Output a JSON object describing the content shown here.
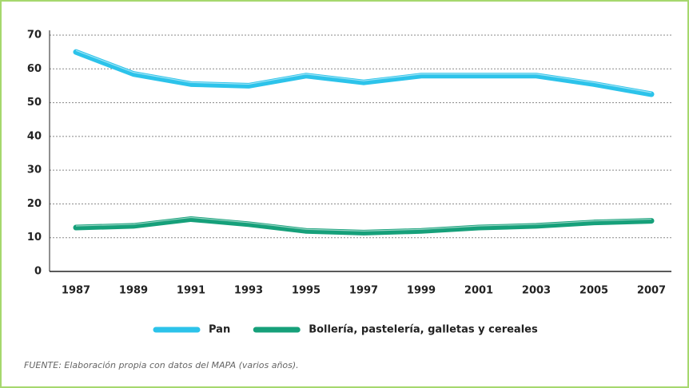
{
  "chart_data": {
    "type": "line",
    "x": [
      1987,
      1989,
      1991,
      1993,
      1995,
      1997,
      1999,
      2001,
      2003,
      2005,
      2007
    ],
    "xlim": [
      1987,
      2007
    ],
    "xticks": [
      1987,
      1989,
      1991,
      1993,
      1995,
      1997,
      1999,
      2001,
      2003,
      2005,
      2007
    ],
    "series": [
      {
        "name": "Pan",
        "color": "#2cc3ea",
        "values": [
          65,
          58.5,
          55.5,
          55,
          58,
          56,
          58,
          58,
          58,
          55.5,
          52.5
        ]
      },
      {
        "name": "Bollería, pastelería, galletas y cereales",
        "color": "#16a07a",
        "values": [
          13,
          13.5,
          15.5,
          14,
          12,
          11.5,
          12,
          13,
          13.5,
          14.5,
          15
        ]
      }
    ],
    "ylim": [
      0,
      70
    ],
    "yticks": [
      0,
      10,
      20,
      30,
      40,
      50,
      60,
      70
    ],
    "grid": true,
    "source": "FUENTE: Elaboración propia con datos del MAPA (varios años)."
  }
}
